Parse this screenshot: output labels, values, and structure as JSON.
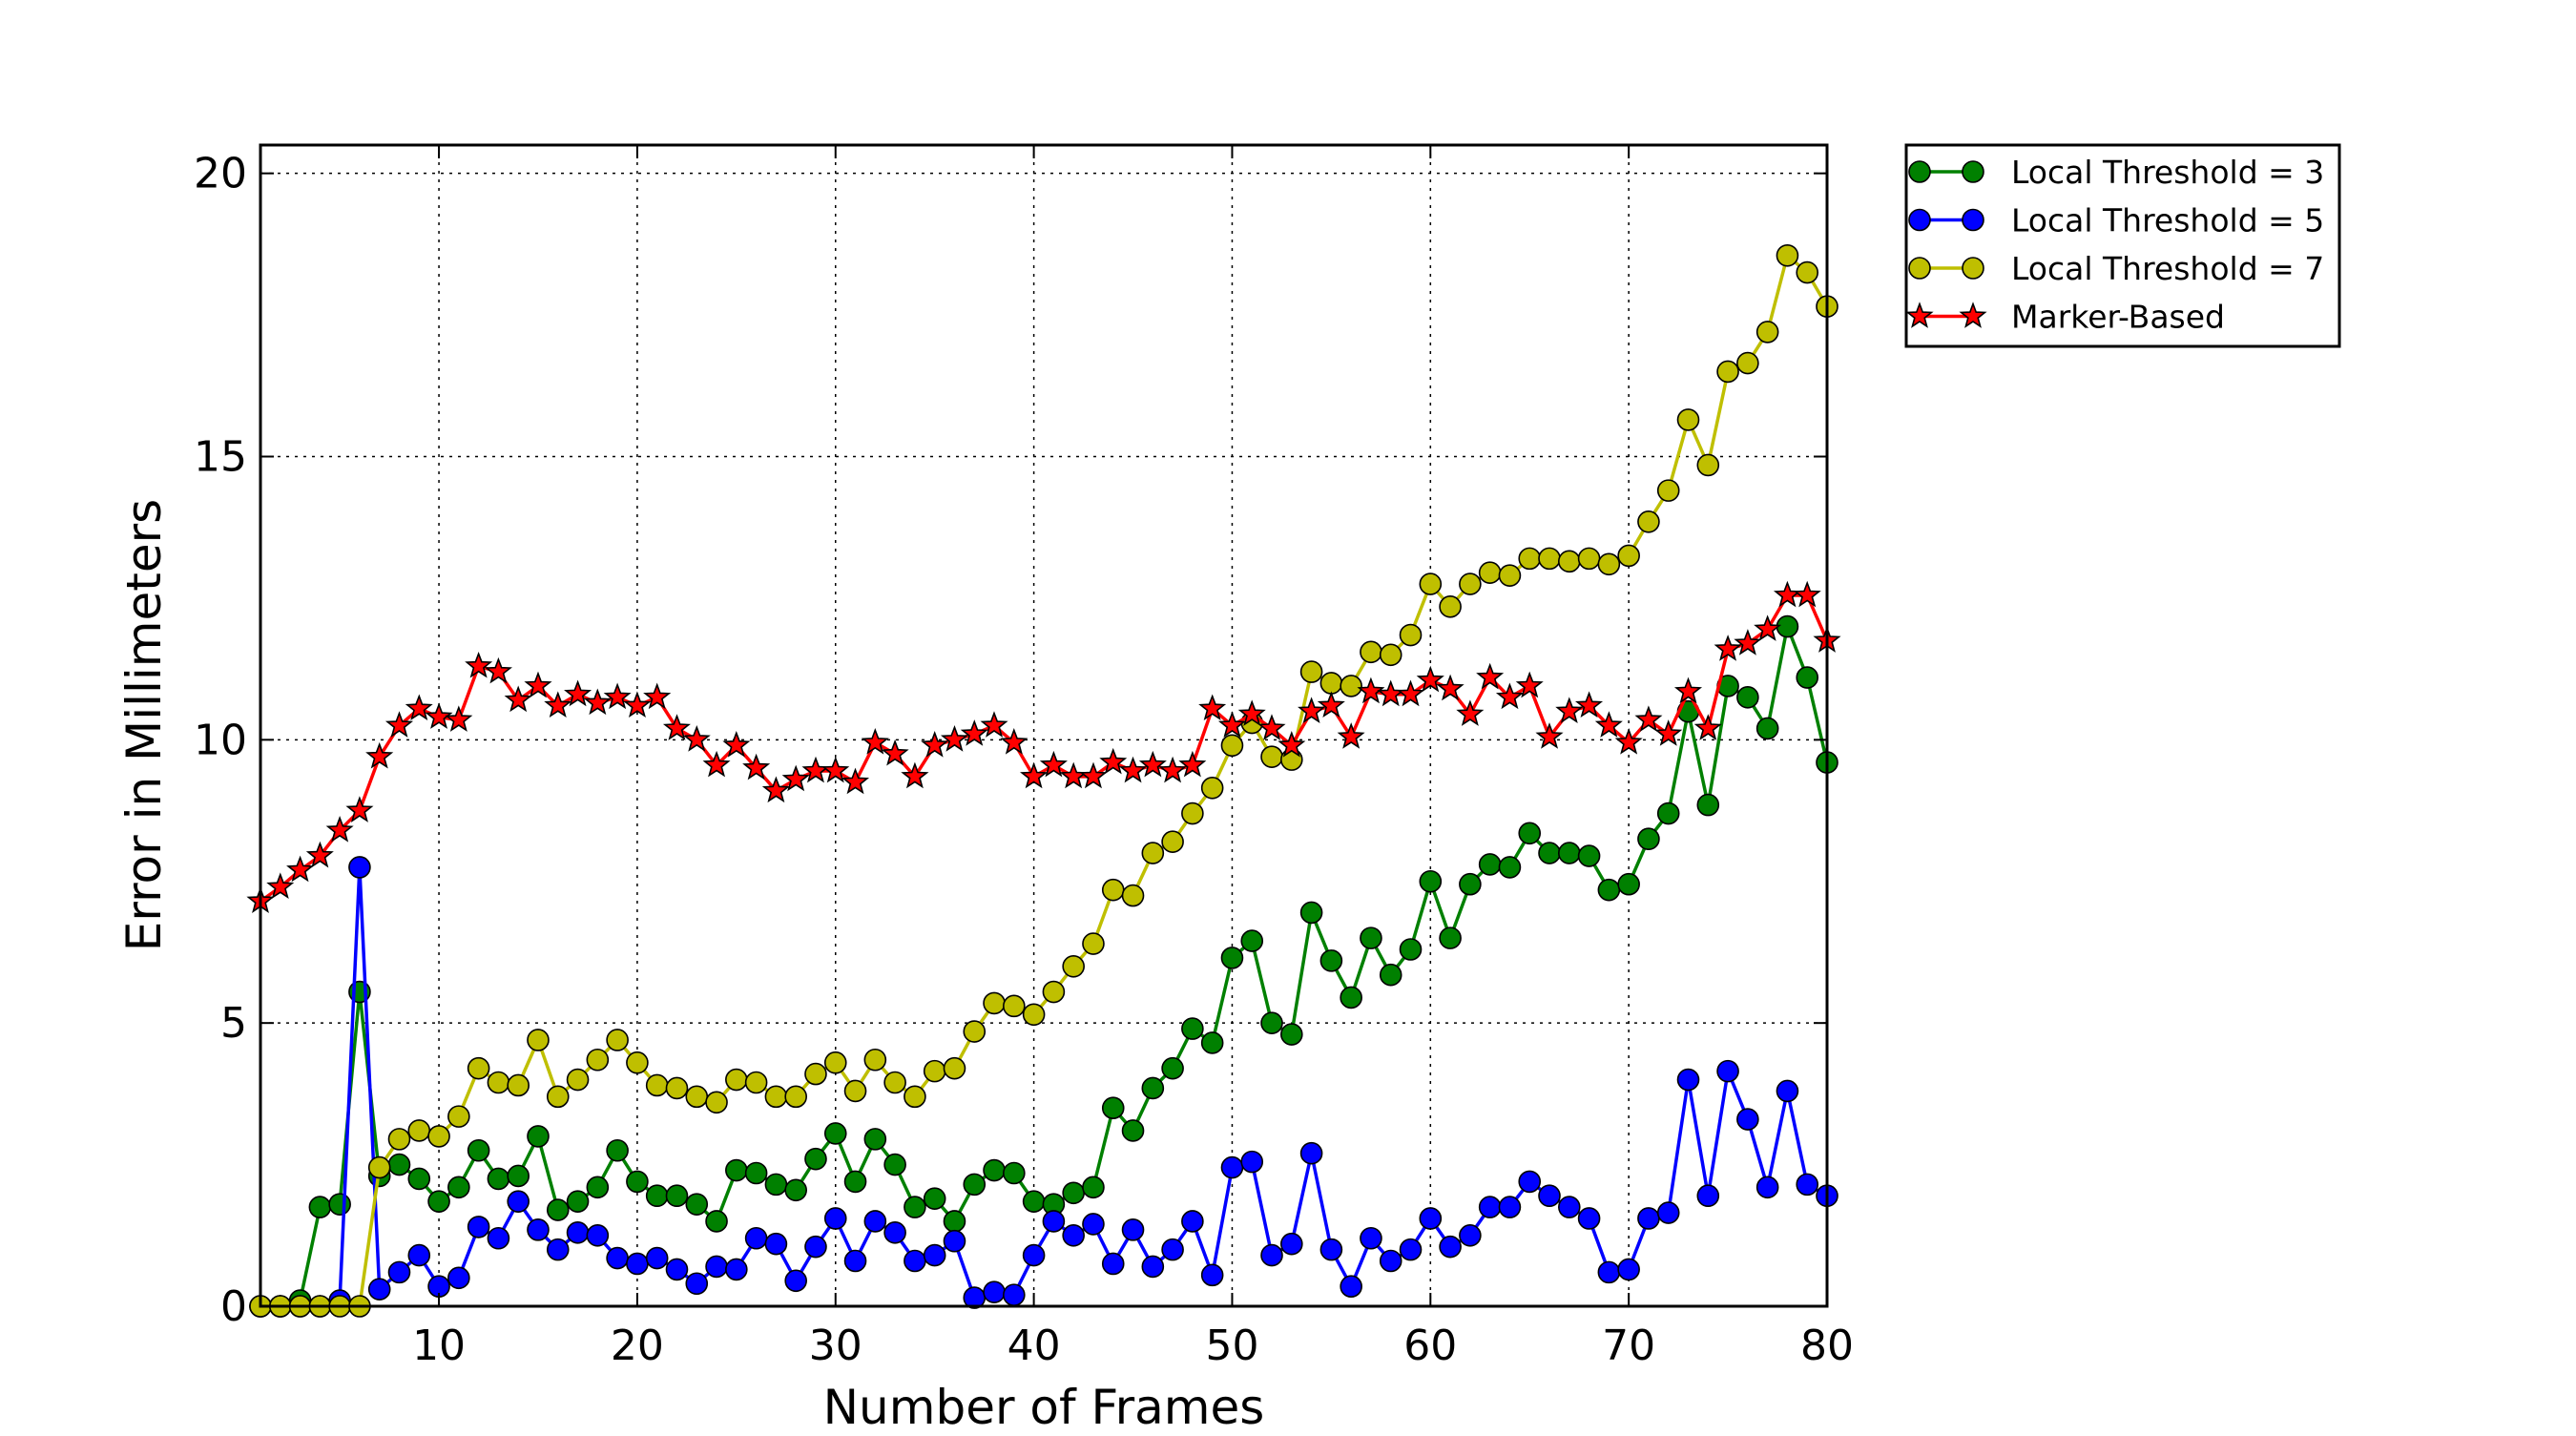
{
  "chart_data": {
    "type": "line",
    "title": "",
    "xlabel": "Number of Frames",
    "ylabel": "Error in Millimeters",
    "xlim": [
      1,
      80
    ],
    "ylim": [
      0,
      20.5
    ],
    "xticks": [
      10,
      20,
      30,
      40,
      50,
      60,
      70,
      80
    ],
    "yticks": [
      0,
      5,
      10,
      15,
      20
    ],
    "grid": true,
    "legend_position": "outside-top-right",
    "x": [
      1,
      2,
      3,
      4,
      5,
      6,
      7,
      8,
      9,
      10,
      11,
      12,
      13,
      14,
      15,
      16,
      17,
      18,
      19,
      20,
      21,
      22,
      23,
      24,
      25,
      26,
      27,
      28,
      29,
      30,
      31,
      32,
      33,
      34,
      35,
      36,
      37,
      38,
      39,
      40,
      41,
      42,
      43,
      44,
      45,
      46,
      47,
      48,
      49,
      50,
      51,
      52,
      53,
      54,
      55,
      56,
      57,
      58,
      59,
      60,
      61,
      62,
      63,
      64,
      65,
      66,
      67,
      68,
      69,
      70,
      71,
      72,
      73,
      74,
      75,
      76,
      77,
      78,
      79,
      80
    ],
    "series": [
      {
        "name": "Local Threshold = 3",
        "color": "#008000",
        "marker": "circle",
        "values": [
          0,
          0,
          0.1,
          1.75,
          1.8,
          5.55,
          2.3,
          2.5,
          2.25,
          1.85,
          2.1,
          2.75,
          2.25,
          2.3,
          3.0,
          1.7,
          1.85,
          2.1,
          2.75,
          2.2,
          1.95,
          1.95,
          1.8,
          1.5,
          2.4,
          2.35,
          2.15,
          2.05,
          2.6,
          3.05,
          2.2,
          2.95,
          2.5,
          1.75,
          1.9,
          1.5,
          2.15,
          2.4,
          2.35,
          1.85,
          1.8,
          2.0,
          2.1,
          3.5,
          3.1,
          3.85,
          4.2,
          4.9,
          4.65,
          6.15,
          6.45,
          5.0,
          4.8,
          6.95,
          6.1,
          5.45,
          6.5,
          5.85,
          6.3,
          7.5,
          6.5,
          7.45,
          7.8,
          7.75,
          8.35,
          8.0,
          8.0,
          7.95,
          7.35,
          7.45,
          8.25,
          8.7,
          10.5,
          8.85,
          10.95,
          10.75,
          10.2,
          12.0,
          11.1,
          9.6
        ]
      },
      {
        "name": "Local Threshold = 5",
        "color": "#0000ff",
        "marker": "circle",
        "values": [
          0,
          0,
          0,
          0,
          0.1,
          7.75,
          0.3,
          0.6,
          0.9,
          0.35,
          0.5,
          1.4,
          1.2,
          1.85,
          1.35,
          1.0,
          1.3,
          1.25,
          0.85,
          0.75,
          0.85,
          0.65,
          0.4,
          0.7,
          0.65,
          1.2,
          1.1,
          0.45,
          1.05,
          1.55,
          0.8,
          1.5,
          1.3,
          0.8,
          0.9,
          1.15,
          0.15,
          0.25,
          0.2,
          0.9,
          1.5,
          1.25,
          1.45,
          0.75,
          1.35,
          0.7,
          1.0,
          1.5,
          0.55,
          2.45,
          2.55,
          0.9,
          1.1,
          2.7,
          1.0,
          0.35,
          1.2,
          0.8,
          1.0,
          1.55,
          1.05,
          1.25,
          1.75,
          1.75,
          2.2,
          1.95,
          1.75,
          1.55,
          0.6,
          0.65,
          1.55,
          1.65,
          4.0,
          1.95,
          4.15,
          3.3,
          2.1,
          3.8,
          2.15,
          1.95
        ]
      },
      {
        "name": "Local Threshold = 7",
        "color": "#bfbf00",
        "marker": "circle",
        "values": [
          0,
          0,
          0,
          0,
          0,
          0,
          2.45,
          2.95,
          3.1,
          3.0,
          3.35,
          4.2,
          3.95,
          3.9,
          4.7,
          3.7,
          4.0,
          4.35,
          4.7,
          4.3,
          3.9,
          3.85,
          3.7,
          3.6,
          4.0,
          3.95,
          3.7,
          3.7,
          4.1,
          4.3,
          3.8,
          4.35,
          3.95,
          3.7,
          4.15,
          4.2,
          4.85,
          5.35,
          5.3,
          5.15,
          5.55,
          6.0,
          6.4,
          7.35,
          7.25,
          8.0,
          8.2,
          8.7,
          9.15,
          9.9,
          10.3,
          9.7,
          9.65,
          11.2,
          11.0,
          10.95,
          11.55,
          11.5,
          11.85,
          12.75,
          12.35,
          12.75,
          12.95,
          12.9,
          13.2,
          13.2,
          13.15,
          13.2,
          13.1,
          13.25,
          13.85,
          14.4,
          15.65,
          14.85,
          16.5,
          16.65,
          17.2,
          18.55,
          18.25,
          17.65
        ]
      },
      {
        "name": "Marker-Based",
        "color": "#ff0000",
        "marker": "star",
        "values": [
          7.15,
          7.4,
          7.7,
          7.95,
          8.4,
          8.75,
          9.7,
          10.25,
          10.55,
          10.4,
          10.35,
          11.3,
          11.2,
          10.7,
          10.95,
          10.6,
          10.8,
          10.65,
          10.75,
          10.6,
          10.75,
          10.2,
          10.0,
          9.55,
          9.9,
          9.5,
          9.1,
          9.3,
          9.45,
          9.45,
          9.25,
          9.95,
          9.75,
          9.35,
          9.9,
          10.0,
          10.1,
          10.25,
          9.95,
          9.35,
          9.55,
          9.35,
          9.35,
          9.6,
          9.45,
          9.55,
          9.45,
          9.55,
          10.55,
          10.25,
          10.45,
          10.2,
          9.9,
          10.5,
          10.6,
          10.05,
          10.85,
          10.8,
          10.8,
          11.05,
          10.9,
          10.45,
          11.1,
          10.75,
          10.95,
          10.05,
          10.5,
          10.6,
          10.25,
          9.95,
          10.35,
          10.1,
          10.85,
          10.2,
          11.6,
          11.7,
          11.95,
          12.55,
          12.55,
          11.75
        ]
      }
    ]
  }
}
